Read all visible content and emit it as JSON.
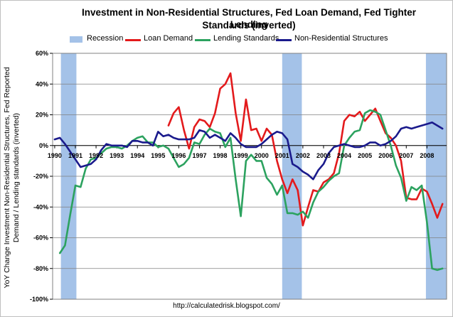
{
  "chart_data": {
    "type": "line",
    "title_line1": "Investment in Non-Residential Structures, Fed Loan Demand, Fed Tighter Lending",
    "title_line2": "Standards (inverted)",
    "ylabel": "YoY Change Investment Non-Residential Structures, Fed Reported Demand / Lending standards (inverted)",
    "source": "http://calculatedrisk.blogspot.com/",
    "xlim": [
      1989.9,
      2008.95
    ],
    "ylim": [
      -100,
      60
    ],
    "x_ticks": [
      1990,
      1991,
      1992,
      1993,
      1994,
      1995,
      1996,
      1997,
      1998,
      1999,
      2000,
      2001,
      2002,
      2003,
      2004,
      2005,
      2006,
      2007,
      2008
    ],
    "x_tick_labels": [
      "1990",
      "1991",
      "1992",
      "1993",
      "1994",
      "1995",
      "1996",
      "1997",
      "1998",
      "1999",
      "2000",
      "2001",
      "2002",
      "2003",
      "2004",
      "2005",
      "2006",
      "2007",
      "2008"
    ],
    "y_ticks": [
      60,
      40,
      20,
      0,
      -20,
      -40,
      -60,
      -80,
      -100
    ],
    "y_tick_labels": [
      "60%",
      "40%",
      "20%",
      "0%",
      "-20%",
      "-40%",
      "-60%",
      "-80%",
      "-100%"
    ],
    "recessions": [
      [
        1990.3,
        1991.05
      ],
      [
        2001.0,
        2001.95
      ],
      [
        2007.95,
        2008.95
      ]
    ],
    "legend": [
      "Recession",
      "Loan Demand",
      "Lending Standards",
      "Non-Residential Structures"
    ],
    "series": [
      {
        "name": "Loan Demand",
        "color": "#e31a1c",
        "x": [
          1995.5,
          1995.75,
          1996.0,
          1996.25,
          1996.5,
          1996.75,
          1997.0,
          1997.25,
          1997.5,
          1997.75,
          1998.0,
          1998.25,
          1998.5,
          1998.75,
          1999.0,
          1999.25,
          1999.5,
          1999.75,
          2000.0,
          2000.25,
          2000.5,
          2000.75,
          2001.0,
          2001.25,
          2001.5,
          2001.75,
          2002.0,
          2002.25,
          2002.5,
          2002.75,
          2003.0,
          2003.25,
          2003.5,
          2003.75,
          2004.0,
          2004.25,
          2004.5,
          2004.75,
          2005.0,
          2005.25,
          2005.5,
          2005.75,
          2006.0,
          2006.25,
          2006.5,
          2006.75,
          2007.0,
          2007.25,
          2007.5,
          2007.75,
          2008.0,
          2008.25,
          2008.5,
          2008.75
        ],
        "y": [
          13,
          21,
          25,
          10,
          -2,
          12,
          17,
          16,
          12,
          21,
          37,
          40,
          47,
          21,
          3,
          30,
          10,
          11,
          3,
          11,
          7,
          -10,
          -22,
          -31,
          -22,
          -29,
          -52,
          -40,
          -29,
          -30,
          -24,
          -22,
          -18,
          -5,
          16,
          20,
          19,
          22,
          16,
          20,
          24,
          16,
          8,
          5,
          0,
          -10,
          -34,
          -35,
          -35,
          -28,
          -30,
          -38,
          -47,
          -38
        ]
      },
      {
        "name": "Lending Standards",
        "color": "#2ca25f",
        "x": [
          1990.25,
          1990.5,
          1990.75,
          1991.0,
          1991.25,
          1991.5,
          1991.75,
          1992.0,
          1992.25,
          1992.5,
          1992.75,
          1993.0,
          1993.25,
          1993.5,
          1993.75,
          1994.0,
          1994.25,
          1994.5,
          1994.75,
          1995.0,
          1995.25,
          1995.5,
          1995.75,
          1996.0,
          1996.25,
          1996.5,
          1996.75,
          1997.0,
          1997.25,
          1997.5,
          1997.75,
          1998.0,
          1998.25,
          1998.5,
          1998.75,
          1999.0,
          1999.25,
          1999.5,
          1999.75,
          2000.0,
          2000.25,
          2000.5,
          2000.75,
          2001.0,
          2001.25,
          2001.5,
          2001.75,
          2002.0,
          2002.25,
          2002.5,
          2002.75,
          2003.0,
          2003.25,
          2003.5,
          2003.75,
          2004.0,
          2004.25,
          2004.5,
          2004.75,
          2005.0,
          2005.25,
          2005.5,
          2005.75,
          2006.0,
          2006.25,
          2006.5,
          2006.75,
          2007.0,
          2007.25,
          2007.5,
          2007.75,
          2008.0,
          2008.25,
          2008.5,
          2008.75
        ],
        "y": [
          -70,
          -65,
          -45,
          -26,
          -27,
          -15,
          -9,
          -8,
          -5,
          -2,
          -1,
          -1,
          -2,
          0,
          3,
          5,
          6,
          2,
          2,
          -1,
          0,
          -2,
          -8,
          -14,
          -12,
          -8,
          2,
          1,
          7,
          11,
          9,
          8,
          -1,
          5,
          -22,
          -46,
          -10,
          -6,
          -10,
          -10,
          -21,
          -25,
          -32,
          -26,
          -44,
          -44,
          -45,
          -43,
          -47,
          -37,
          -30,
          -27,
          -23,
          -20,
          -18,
          0,
          5,
          9,
          10,
          21,
          23,
          22,
          20,
          10,
          0,
          -13,
          -21,
          -36,
          -27,
          -29,
          -26,
          -50,
          -80,
          -81,
          -80
        ]
      },
      {
        "name": "Non-Residential Structures",
        "color": "#1a1a8c",
        "x": [
          1990.0,
          1990.25,
          1990.5,
          1990.75,
          1991.0,
          1991.25,
          1991.5,
          1991.75,
          1992.0,
          1992.25,
          1992.5,
          1992.75,
          1993.0,
          1993.25,
          1993.5,
          1993.75,
          1994.0,
          1994.25,
          1994.5,
          1994.75,
          1995.0,
          1995.25,
          1995.5,
          1995.75,
          1996.0,
          1996.25,
          1996.5,
          1996.75,
          1997.0,
          1997.25,
          1997.5,
          1997.75,
          1998.0,
          1998.25,
          1998.5,
          1998.75,
          1999.0,
          1999.25,
          1999.5,
          1999.75,
          2000.0,
          2000.25,
          2000.5,
          2000.75,
          2001.0,
          2001.25,
          2001.5,
          2001.75,
          2002.0,
          2002.25,
          2002.5,
          2002.75,
          2003.0,
          2003.25,
          2003.5,
          2003.75,
          2004.0,
          2004.25,
          2004.5,
          2004.75,
          2005.0,
          2005.25,
          2005.5,
          2005.75,
          2006.0,
          2006.25,
          2006.5,
          2006.75,
          2007.0,
          2007.25,
          2007.5,
          2007.75,
          2008.0,
          2008.25,
          2008.5,
          2008.75
        ],
        "y": [
          4,
          5,
          1,
          -4,
          -9,
          -14,
          -13,
          -12,
          -9,
          -3,
          1,
          0,
          0,
          0,
          -1,
          3,
          3,
          2,
          2,
          0,
          9,
          6,
          7,
          5,
          4,
          4,
          4,
          5,
          10,
          9,
          5,
          7,
          5,
          3,
          8,
          5,
          1,
          -1,
          -1,
          -1,
          1,
          4,
          7,
          9,
          8,
          4,
          -12,
          -14,
          -17,
          -19,
          -22,
          -16,
          -12,
          -5,
          -1,
          0,
          1,
          0,
          -1,
          -1,
          0,
          2,
          2,
          0,
          1,
          3,
          6,
          11,
          12,
          11,
          12,
          13,
          14,
          15,
          13,
          11
        ]
      }
    ]
  }
}
